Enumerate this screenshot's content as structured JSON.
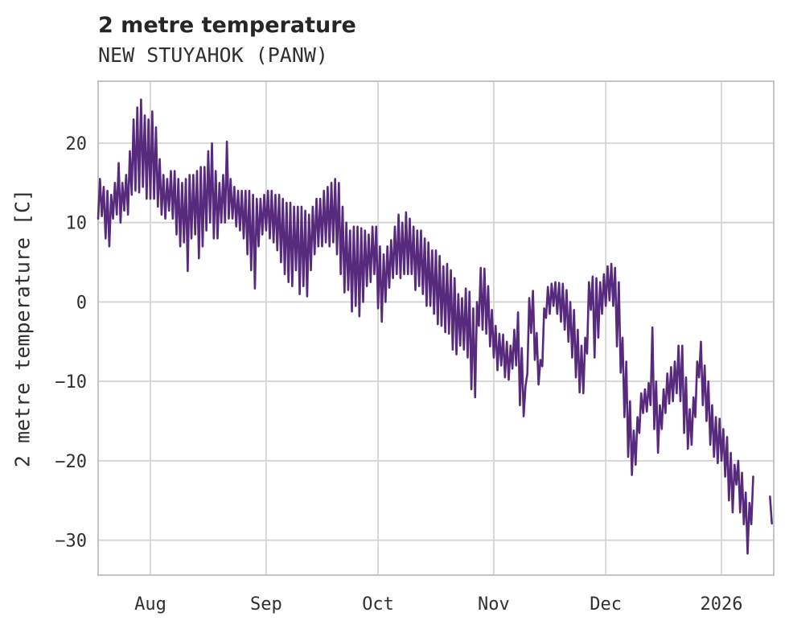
{
  "header": {
    "title": "2 metre temperature",
    "subtitle": "NEW STUYAHOK (PANW)"
  },
  "colors": {
    "line": "#582a7d",
    "grid": "#d4d4d4",
    "border": "#c4c4c4",
    "text": "#303030",
    "background": "#ffffff"
  },
  "chart_data": {
    "type": "line",
    "title": "2 metre temperature",
    "subtitle": "NEW STUYAHOK (PANW)",
    "xlabel": "",
    "ylabel": "2 metre temperature [C]",
    "legend": null,
    "grid": true,
    "x_unit": "days from 2025-08-01, series starts 2025-07-18, two samples per day",
    "start_day": -14,
    "step_days": 0.5,
    "x_domain": [
      -14,
      167
    ],
    "y_domain": [
      -34.4,
      27.8
    ],
    "x_ticks": [
      {
        "label": "Aug",
        "day": 0
      },
      {
        "label": "Sep",
        "day": 31
      },
      {
        "label": "Oct",
        "day": 61
      },
      {
        "label": "Nov",
        "day": 92
      },
      {
        "label": "Dec",
        "day": 122
      },
      {
        "label": "2026",
        "day": 153
      }
    ],
    "y_ticks": [
      {
        "label": "20",
        "value": 20
      },
      {
        "label": "10",
        "value": 10
      },
      {
        "label": "0",
        "value": 0
      },
      {
        "label": "−10",
        "value": -10
      },
      {
        "label": "−20",
        "value": -20
      },
      {
        "label": "−30",
        "value": -30
      }
    ],
    "values": [
      10.5,
      15.5,
      10.8,
      14.5,
      8,
      14,
      7,
      13.5,
      10.5,
      15,
      11,
      17.5,
      10,
      15,
      11.5,
      16,
      11,
      19,
      13.5,
      23,
      14,
      24.5,
      13.8,
      25.5,
      14.5,
      23.5,
      13,
      23,
      13,
      24,
      13,
      22,
      12,
      18,
      11,
      16,
      10.5,
      15.5,
      11.5,
      16.5,
      10.5,
      16.5,
      8.5,
      15.5,
      7,
      15,
      7.5,
      15.5,
      3.9,
      16,
      8,
      16,
      8.5,
      16.5,
      5.5,
      17,
      7,
      17,
      9,
      19,
      10,
      20,
      8,
      16.5,
      8,
      15,
      10,
      16,
      10,
      20.2,
      10.5,
      15.5,
      10.5,
      14.5,
      9.5,
      14,
      9,
      14,
      8,
      14,
      6,
      14,
      4,
      13.5,
      1.7,
      13,
      7,
      13,
      8.5,
      13.5,
      9,
      14,
      8,
      14,
      7.5,
      13.5,
      6.5,
      13.5,
      5,
      13,
      3.5,
      12.5,
      2.5,
      12.5,
      2,
      12,
      4,
      12,
      1,
      12,
      2,
      11.5,
      0.7,
      11,
      4,
      12,
      6,
      13,
      7,
      13,
      7,
      14,
      7.5,
      14.5,
      7,
      15,
      7.5,
      15.5,
      6,
      15,
      3.5,
      12,
      1.2,
      10,
      1.5,
      9,
      -1.2,
      9.5,
      -0.5,
      9.5,
      -1.8,
      9.3,
      0,
      9,
      2,
      8.5,
      2.5,
      9.5,
      3.5,
      9.5,
      -0.8,
      7,
      -2.5,
      6,
      0,
      7,
      1.8,
      7.8,
      3,
      9.5,
      3.5,
      11,
      3,
      10,
      3.5,
      11.3,
      3.5,
      10.5,
      3.5,
      9.5,
      1.5,
      9,
      2,
      9,
      1,
      8,
      -0.5,
      7.5,
      -0.5,
      6.5,
      -1.5,
      6.5,
      -2.8,
      5.8,
      -3,
      4.5,
      -3.8,
      4.8,
      -4,
      4,
      -6,
      3,
      -6.6,
      1,
      -5.5,
      0.5,
      -6,
      1.7,
      -7,
      1.3,
      -11,
      -0.8,
      -12,
      0,
      -3,
      4.3,
      -3.5,
      4.2,
      -4,
      2,
      -5.6,
      -1,
      -7,
      -3,
      -8.6,
      -4,
      -8,
      -4.1,
      -9.5,
      -5,
      -9.8,
      -5.5,
      -8.4,
      -3.5,
      -8,
      -1.3,
      -13,
      -5.8,
      -14.4,
      -10.6,
      -9,
      0.5,
      -3.9,
      1.4,
      -7.3,
      -3.9,
      -10.4,
      -7.3,
      -8.1,
      -0.8,
      -2,
      1.9,
      -1.5,
      2.3,
      -0.5,
      2.5,
      -1.5,
      2.4,
      -2.5,
      2.3,
      -3.5,
      1.5,
      -5,
      0,
      -7,
      -1,
      -9.5,
      -3.5,
      -11.4,
      -5.5,
      -11.5,
      -4.5,
      -6.5,
      2.5,
      -1,
      3.2,
      -7,
      3,
      -4.5,
      2.5,
      -1.5,
      3.5,
      -0.5,
      4.5,
      0.2,
      4.8,
      -0.5,
      4.3,
      -5.6,
      2.5,
      -8.9,
      -4.5,
      -14.5,
      -7.5,
      -19.5,
      -12.5,
      -21.8,
      -16.2,
      -20.5,
      -14.5,
      -16.5,
      -11.5,
      -14,
      -11,
      -13.8,
      -10.2,
      -13,
      -3.2,
      -16,
      -10,
      -19,
      -13,
      -16,
      -11,
      -14,
      -9,
      -12.8,
      -8.2,
      -12.5,
      -7.5,
      -11.5,
      -5.5,
      -12.5,
      -5.5,
      -16.5,
      -9.5,
      -18.5,
      -13.5,
      -18,
      -12,
      -14.5,
      -7.5,
      -9.5,
      -5,
      -13,
      -8,
      -15,
      -10,
      -18,
      -13,
      -19.5,
      -14.5,
      -20.3,
      -14.7,
      -20,
      -16,
      -22,
      -17,
      -25,
      -19,
      -26.5,
      -20.5,
      -23,
      -20,
      -26.5,
      -21.5,
      -28,
      -24,
      -31.7,
      -25.3,
      -28,
      -22,
      null,
      null,
      null,
      null,
      null,
      null,
      null,
      null,
      -24.5,
      -27.9
    ]
  }
}
